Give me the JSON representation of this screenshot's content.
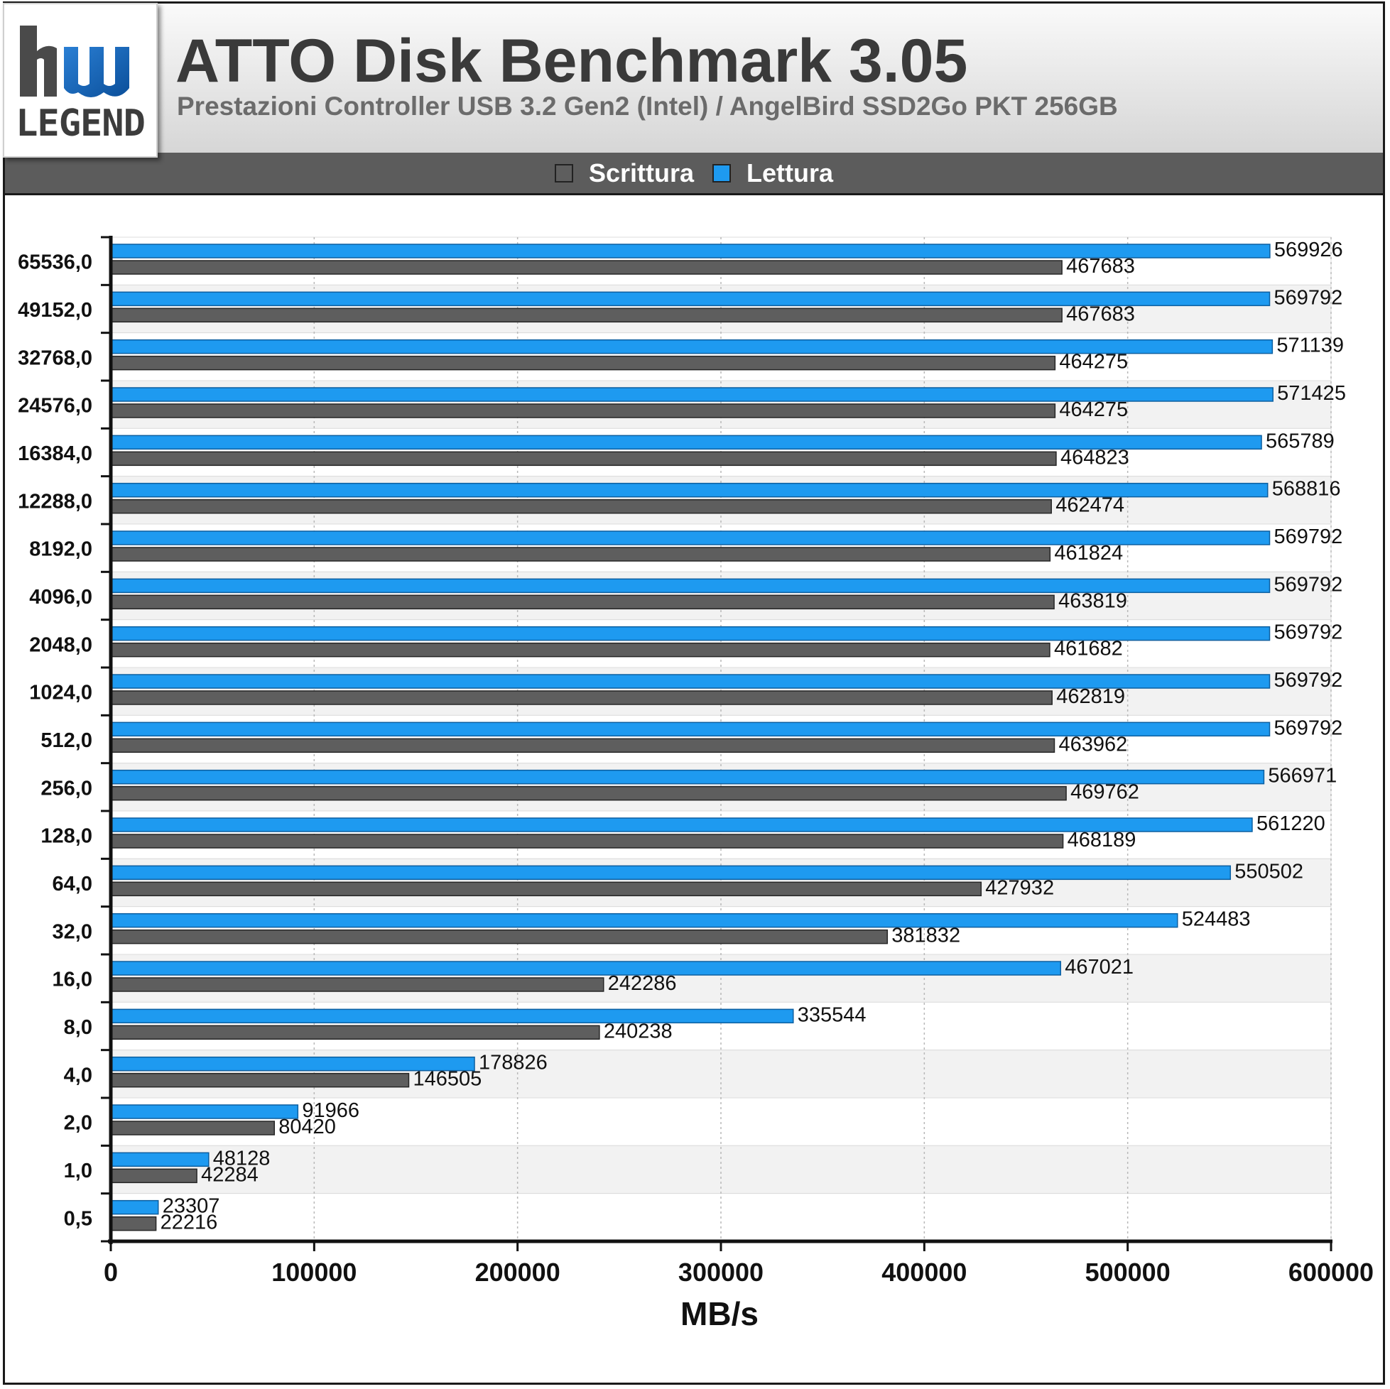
{
  "header": {
    "logo": {
      "top_text": "hw",
      "bottom_text": "LEGEND"
    },
    "title": "ATTO Disk Benchmark 3.05",
    "subtitle": "Prestazioni Controller USB 3.2 Gen2 (Intel) / AngelBird SSD2Go PKT 256GB"
  },
  "colors": {
    "write": "#5e5e5e",
    "read": "#1e9af0",
    "header_bg": "#d9d9d9",
    "legend_bg": "#5c5c5c"
  },
  "chart_data": {
    "type": "bar",
    "orientation": "horizontal",
    "xlabel": "MB/s",
    "ylabel": "",
    "xlim": [
      0,
      600000
    ],
    "xticks": [
      0,
      100000,
      200000,
      300000,
      400000,
      500000,
      600000
    ],
    "grid": true,
    "legend_position": "top-center",
    "categories": [
      "65536,0",
      "49152,0",
      "32768,0",
      "24576,0",
      "16384,0",
      "12288,0",
      "8192,0",
      "4096,0",
      "2048,0",
      "1024,0",
      "512,0",
      "256,0",
      "128,0",
      "64,0",
      "32,0",
      "16,0",
      "8,0",
      "4,0",
      "2,0",
      "1,0",
      "0,5"
    ],
    "series": [
      {
        "name": "Scrittura",
        "values": [
          467683,
          467683,
          464275,
          464275,
          464823,
          462474,
          461824,
          463819,
          461682,
          462819,
          463962,
          469762,
          468189,
          427932,
          381832,
          242286,
          240238,
          146505,
          80420,
          42284,
          22216
        ]
      },
      {
        "name": "Lettura",
        "values": [
          569926,
          569792,
          571139,
          571425,
          565789,
          568816,
          569792,
          569792,
          569792,
          569792,
          569792,
          566971,
          561220,
          550502,
          524483,
          467021,
          335544,
          178826,
          91966,
          48128,
          23307
        ]
      }
    ]
  }
}
